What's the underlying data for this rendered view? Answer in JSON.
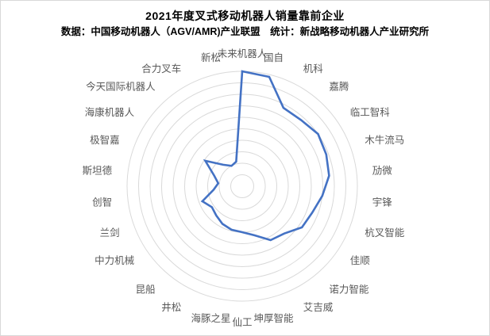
{
  "page": {
    "title": "2021年度叉式移动机器人销量靠前企业",
    "subtitle": "数据：中国移动机器人（AGV/AMR)产业联盟　统计：新战略移动机器人产业研究所"
  },
  "colors": {
    "series_line": "#4472C4",
    "gridline": "#D9D9D9",
    "axis_label": "#595959",
    "title_text": "#000000",
    "page_border": "#D9D9D9",
    "background": "#FFFFFF"
  },
  "chart_data": {
    "type": "radar",
    "grid_shape": "circular",
    "rings": 10,
    "legend": "none",
    "radial_tick_labels_visible": false,
    "value_range": [
      0,
      10
    ],
    "values_note": "radial scale unlabeled in source; values estimated on relative 0-10 scale from ring positions",
    "categories": [
      "未来机器人",
      "国自",
      "机科",
      "嘉腾",
      "临工智科",
      "木牛流马",
      "劢微",
      "宇锋",
      "杭叉智能",
      "佳顺",
      "诺力智能",
      "艾吉威",
      "坤厚智能",
      "仙工",
      "海豚之星",
      "井松",
      "昆船",
      "中力机械",
      "兰剑",
      "创智",
      "斯坦德",
      "极智嘉",
      "海康机器人",
      "今天国际机器人",
      "合力叉车",
      "新松"
    ],
    "values": [
      10,
      9.8,
      7.7,
      7.7,
      8.0,
      7.8,
      7.6,
      7.0,
      6.5,
      6.3,
      5.5,
      5.3,
      4.4,
      4.0,
      3.9,
      3.7,
      3.4,
      3.2,
      3.7,
      2.5,
      2.1,
      2.6,
      3.9,
      2.5,
      2.0,
      2.2
    ]
  }
}
